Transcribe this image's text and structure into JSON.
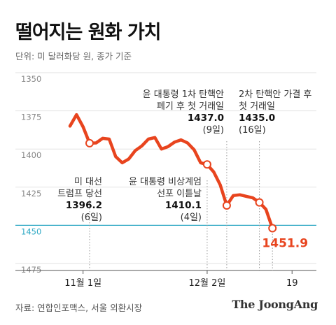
{
  "header": {
    "title": "떨어지는 원화 가치",
    "unit": "단위: 미 달러화당 원, 종가 기준"
  },
  "footer": {
    "source": "자료: 연합인포맥스, 서울 외환시장",
    "brand": "The JoongAng"
  },
  "colors": {
    "line": "#e8441e",
    "grid": "#e2e2e2",
    "highlight_grid": "#2ea8c4",
    "marker_fill": "#ffffff"
  },
  "chart_data": {
    "type": "line",
    "title": "떨어지는 원화 가치",
    "xlabel": "",
    "ylabel": "",
    "y_inverted": true,
    "ylim": [
      1350,
      1475
    ],
    "yticks": [
      1350,
      1375,
      1400,
      1425,
      1450,
      1475
    ],
    "highlight_ytick": 1450,
    "grid": "horizontal",
    "xticks": [
      {
        "index": 2,
        "label": "11월 1일"
      },
      {
        "index": 21,
        "label": "12월 2일"
      },
      {
        "index": 34,
        "label": "19"
      }
    ],
    "series": [
      {
        "values": [
          1385.0,
          1377.5,
          1385.5,
          1396.2,
          1396.0,
          1393.0,
          1393.5,
          1405.0,
          1409.0,
          1406.5,
          1401.0,
          1398.0,
          1393.5,
          1392.5,
          1400.0,
          1398.5,
          1395.5,
          1394.0,
          1396.0,
          1400.5,
          1409.0,
          1410.1,
          1415.0,
          1423.5,
          1437.0,
          1430.5,
          1430.0,
          1431.0,
          1432.0,
          1435.0,
          1439.5,
          1451.9
        ]
      }
    ],
    "x_index": [
      0,
      1,
      2,
      3,
      4,
      5,
      6,
      7,
      8,
      9,
      10,
      11,
      12,
      13,
      14,
      15,
      16,
      17,
      18,
      19,
      20,
      21,
      22,
      23,
      24,
      25,
      26,
      27,
      28,
      29,
      30,
      31
    ],
    "markers": [
      3,
      21,
      24,
      29,
      31
    ],
    "annotations": [
      {
        "point": 3,
        "lines": [
          "미 대선",
          "트럼프 당선"
        ],
        "value": "1396.2",
        "note": "(6일)"
      },
      {
        "point": 21,
        "lines": [
          "윤 대통령 비상계엄",
          "선포 이튿날"
        ],
        "value": "1410.1",
        "note": "(4일)"
      },
      {
        "point": 24,
        "lines": [
          "윤 대통령 1차 탄핵안",
          "폐기 후 첫 거래일"
        ],
        "value": "1437.0",
        "note": "(9일)"
      },
      {
        "point": 29,
        "lines": [
          "2차 탄핵안 가결 후",
          "첫 거래일"
        ],
        "value": "1435.0",
        "note": "(16일)"
      }
    ],
    "last_label": "1451.9"
  }
}
